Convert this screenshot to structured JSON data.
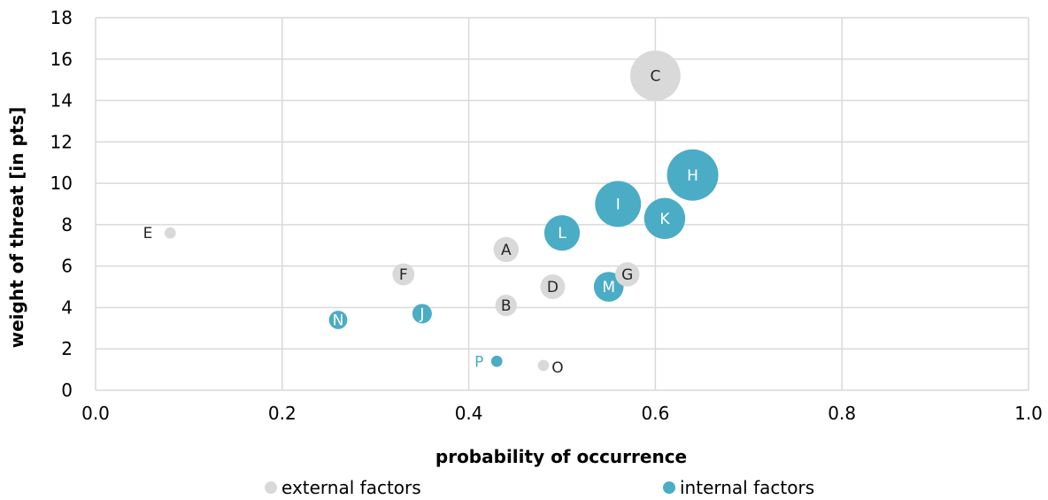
{
  "chart_data": {
    "type": "bubble",
    "title": "",
    "xlabel": "probability of occurrence",
    "ylabel": "weight of threat [in pts]",
    "xlim": [
      0,
      1
    ],
    "ylim": [
      0,
      18
    ],
    "x_ticks": [
      "0.0",
      "0.2",
      "0.4",
      "0.6",
      "0.8",
      "1.0"
    ],
    "y_ticks": [
      "0",
      "2",
      "4",
      "6",
      "8",
      "10",
      "12",
      "14",
      "16",
      "18"
    ],
    "grid": true,
    "legend_position": "bottom",
    "series": [
      {
        "name": "external factors",
        "color": "#d9d9d9",
        "label_color": "#262626",
        "points": [
          {
            "label": "A",
            "x": 0.44,
            "y": 6.8,
            "size": 3
          },
          {
            "label": "B",
            "x": 0.44,
            "y": 4.1,
            "size": 2.2
          },
          {
            "label": "C",
            "x": 0.6,
            "y": 15.2,
            "size": 12
          },
          {
            "label": "D",
            "x": 0.49,
            "y": 5.0,
            "size": 2.9
          },
          {
            "label": "E",
            "x": 0.08,
            "y": 7.6,
            "size": 0.6
          },
          {
            "label": "F",
            "x": 0.33,
            "y": 5.6,
            "size": 2.3
          },
          {
            "label": "G",
            "x": 0.57,
            "y": 5.6,
            "size": 2.8
          },
          {
            "label": "O",
            "x": 0.48,
            "y": 1.2,
            "size": 0.6
          }
        ]
      },
      {
        "name": "internal factors",
        "color": "#4bacc6",
        "label_color": "#ffffff",
        "points": [
          {
            "label": "H",
            "x": 0.64,
            "y": 10.4,
            "size": 12.5
          },
          {
            "label": "I",
            "x": 0.56,
            "y": 9.0,
            "size": 10
          },
          {
            "label": "J",
            "x": 0.35,
            "y": 3.7,
            "size": 1.8
          },
          {
            "label": "K",
            "x": 0.61,
            "y": 8.3,
            "size": 8
          },
          {
            "label": "L",
            "x": 0.5,
            "y": 7.6,
            "size": 6
          },
          {
            "label": "M",
            "x": 0.55,
            "y": 5.0,
            "size": 4.2
          },
          {
            "label": "N",
            "x": 0.26,
            "y": 3.4,
            "size": 1.6
          },
          {
            "label": "P",
            "x": 0.43,
            "y": 1.4,
            "size": 0.6
          }
        ]
      }
    ]
  }
}
